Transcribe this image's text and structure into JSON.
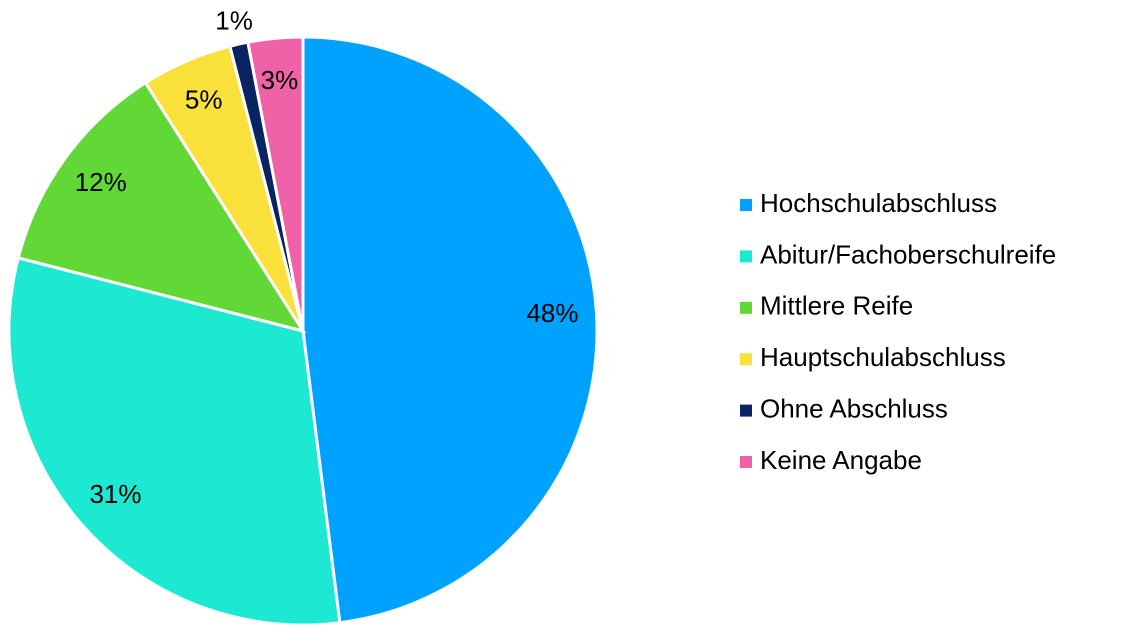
{
  "chart_data": {
    "type": "pie",
    "categories": [
      "Hochschulabschluss",
      "Abitur/Fachoberschulreife",
      "Mittlere Reife",
      "Hauptschulabschluss",
      "Ohne Abschluss",
      "Keine Angabe"
    ],
    "values": [
      48,
      31,
      12,
      5,
      1,
      3
    ],
    "value_labels": [
      "48%",
      "31%",
      "12%",
      "5%",
      "1%",
      "3%"
    ],
    "colors": [
      "#00a2ff",
      "#1de9d2",
      "#62d836",
      "#f9e03a",
      "#0a2463",
      "#f062a8"
    ],
    "legend": "right"
  }
}
